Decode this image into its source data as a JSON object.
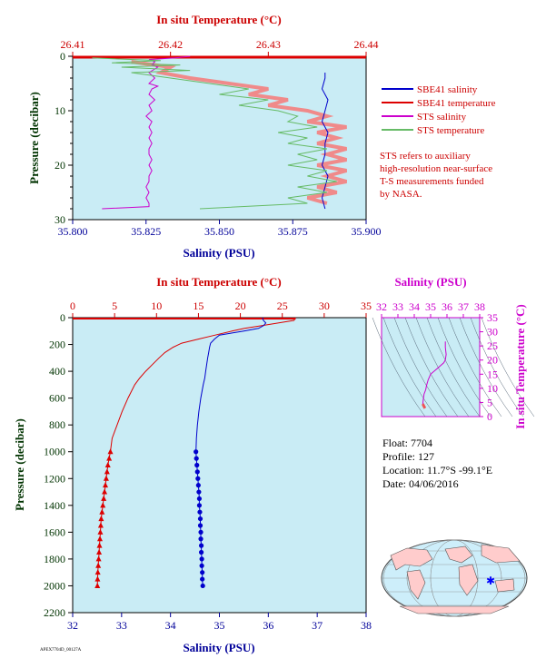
{
  "colors": {
    "plot_bg": "#c9ecf5",
    "sbe_salinity": "#0000cc",
    "sbe_temperature": "#dd0000",
    "sts_salinity": "#cc00cc",
    "sts_temperature": "#66bb66",
    "sts_temperature_band": "#f08a8a",
    "axis_red": "#cc0000",
    "axis_blue": "#000099",
    "axis_green": "#003300",
    "axis_magenta": "#cc00cc",
    "land": "#ffcccc",
    "ocean": "#cdeefa",
    "float_marker": "#0000ff"
  },
  "legend": {
    "items": [
      {
        "label": "SBE41 salinity",
        "color": "#0000cc"
      },
      {
        "label": "SBE41 temperature",
        "color": "#dd0000"
      },
      {
        "label": "STS salinity",
        "color": "#cc00cc"
      },
      {
        "label": "STS temperature",
        "color": "#66bb66"
      }
    ],
    "note": [
      "STS refers to auxiliary",
      "high-resolution near-surface",
      "T-S measurements funded",
      "by NASA."
    ]
  },
  "info": {
    "float": "Float:  7704",
    "profile": "Profile:  127",
    "location": "Location:  11.7°S  -99.1°E",
    "date": "Date:  04/06/2016"
  },
  "footer_tag": "APEX7704D_00127A",
  "chart_data": [
    {
      "id": "near-surface",
      "type": "line",
      "top_axis_label": "In situ Temperature (°C)",
      "bottom_axis_label": "Salinity (PSU)",
      "ylabel": "Pressure (decibar)",
      "temp_ticks": [
        "26.41",
        "26.42",
        "26.43",
        "26.44"
      ],
      "temp_lim": [
        26.41,
        26.44
      ],
      "sal_ticks": [
        "35.800",
        "35.825",
        "35.850",
        "35.875",
        "35.900"
      ],
      "sal_lim": [
        35.8,
        35.9
      ],
      "p_ticks": [
        "0",
        "10",
        "20",
        "30"
      ],
      "p_lim": [
        0,
        30
      ],
      "series": [
        {
          "name": "STS salinity",
          "p": [
            0.0,
            0.3,
            0.6,
            1.0,
            1.5,
            2.0,
            3.0,
            4.0,
            5.0,
            5.5,
            6.0,
            7.0,
            8.0,
            9.0,
            10.0,
            11.0,
            12.0,
            13.0,
            14.0,
            15.0,
            16.0,
            17.0,
            18.0,
            19.0,
            20.0,
            21.0,
            22.0,
            23.0,
            24.0,
            25.0,
            26.0,
            27.0,
            27.6,
            28.0
          ],
          "x": [
            35.84,
            35.835,
            35.826,
            35.828,
            35.827,
            35.829,
            35.826,
            35.828,
            35.826,
            35.829,
            35.827,
            35.826,
            35.828,
            35.826,
            35.827,
            35.825,
            35.827,
            35.826,
            35.827,
            35.826,
            35.827,
            35.826,
            35.826,
            35.827,
            35.826,
            35.827,
            35.826,
            35.826,
            35.825,
            35.826,
            35.825,
            35.826,
            35.826,
            35.81
          ]
        },
        {
          "name": "SBE41 salinity",
          "p": [
            3.0,
            4.0,
            6.0,
            8.0,
            10.0,
            12.0,
            14.0,
            16.0,
            18.0,
            20.0,
            22.0,
            24.0,
            26.0,
            28.0
          ],
          "x": [
            35.886,
            35.886,
            35.885,
            35.887,
            35.886,
            35.885,
            35.887,
            35.886,
            35.886,
            35.885,
            35.887,
            35.886,
            35.885,
            35.886
          ]
        },
        {
          "name": "STS temperature",
          "p": [
            0.3,
            0.8,
            1.2,
            1.6,
            2.0,
            2.6,
            3.0,
            3.5,
            4.0,
            5.0,
            6.0,
            7.0,
            8.0,
            9.0,
            10.0,
            11.0,
            12.0,
            13.0,
            14.0,
            15.0,
            16.0,
            17.0,
            18.0,
            19.0,
            20.0,
            21.0,
            22.0,
            23.0,
            24.0,
            25.0,
            26.0,
            27.0,
            28.0
          ],
          "x": [
            26.412,
            26.419,
            26.414,
            26.421,
            26.415,
            26.422,
            26.416,
            26.418,
            26.42,
            26.424,
            26.428,
            26.425,
            26.43,
            26.427,
            26.431,
            26.433,
            26.432,
            26.435,
            26.431,
            26.434,
            26.432,
            26.436,
            26.433,
            26.435,
            26.432,
            26.436,
            26.434,
            26.437,
            26.433,
            26.436,
            26.432,
            26.434,
            26.423
          ]
        },
        {
          "name": "STS temperature band",
          "p": [
            1.0,
            2.0,
            3.0,
            4.0,
            5.0,
            6.0,
            7.0,
            8.0,
            9.0,
            10.0,
            11.0,
            12.0,
            13.0,
            14.0,
            15.0,
            16.0,
            17.0,
            18.0,
            19.0,
            20.0,
            21.0,
            22.0,
            23.0,
            24.0,
            25.0,
            26.0,
            27.0
          ],
          "x": [
            26.416,
            26.42,
            26.419,
            26.422,
            26.426,
            26.43,
            26.428,
            26.432,
            26.43,
            26.434,
            26.436,
            26.434,
            26.438,
            26.435,
            26.437,
            26.435,
            26.438,
            26.436,
            26.438,
            26.435,
            26.438,
            26.436,
            26.438,
            26.435,
            26.437,
            26.434,
            26.436
          ]
        }
      ]
    },
    {
      "id": "full-profile",
      "type": "line",
      "top_axis_label": "In situ Temperature (°C)",
      "bottom_axis_label": "Salinity (PSU)",
      "ylabel": "Pressure (decibar)",
      "temp_ticks": [
        "0",
        "5",
        "10",
        "15",
        "20",
        "25",
        "30",
        "35"
      ],
      "temp_lim": [
        0,
        35
      ],
      "sal_ticks": [
        "32",
        "33",
        "34",
        "35",
        "36",
        "37",
        "38"
      ],
      "sal_lim": [
        32,
        38
      ],
      "p_ticks": [
        "0",
        "200",
        "400",
        "600",
        "800",
        "1000",
        "1200",
        "1400",
        "1600",
        "1800",
        "2000",
        "2200"
      ],
      "p_lim": [
        0,
        2200
      ],
      "series": [
        {
          "name": "SBE41 temperature",
          "p": [
            0,
            20,
            40,
            60,
            80,
            100,
            130,
            160,
            190,
            220,
            260,
            300,
            350,
            400,
            450,
            500,
            600,
            700,
            800,
            900,
            1000
          ],
          "x": [
            26.6,
            26.4,
            24.5,
            22.5,
            20.5,
            19.0,
            17.0,
            15.0,
            13.0,
            12.0,
            11.0,
            10.3,
            9.5,
            8.7,
            8.0,
            7.4,
            6.6,
            5.9,
            5.3,
            4.7,
            4.5
          ]
        },
        {
          "name": "SBE41 salinity",
          "p": [
            0,
            20,
            40,
            60,
            80,
            100,
            130,
            160,
            190,
            220,
            260,
            300,
            350,
            400,
            450,
            500,
            600,
            700,
            800,
            900,
            1000
          ],
          "x": [
            35.88,
            35.9,
            35.95,
            35.9,
            35.8,
            35.5,
            35.0,
            34.9,
            34.82,
            34.8,
            34.78,
            34.76,
            34.74,
            34.72,
            34.7,
            34.67,
            34.62,
            34.58,
            34.55,
            34.53,
            34.52
          ]
        },
        {
          "name": "temperature-markers",
          "p": [
            1000,
            1050,
            1100,
            1150,
            1200,
            1250,
            1300,
            1350,
            1400,
            1450,
            1500,
            1550,
            1600,
            1650,
            1700,
            1750,
            1800,
            1850,
            1900,
            1950,
            2000
          ],
          "x": [
            4.5,
            4.35,
            4.2,
            4.1,
            4.0,
            3.9,
            3.8,
            3.7,
            3.6,
            3.5,
            3.4,
            3.35,
            3.3,
            3.25,
            3.2,
            3.15,
            3.1,
            3.05,
            3.0,
            2.97,
            2.95
          ]
        },
        {
          "name": "salinity-markers",
          "p": [
            1000,
            1050,
            1100,
            1150,
            1200,
            1250,
            1300,
            1350,
            1400,
            1450,
            1500,
            1550,
            1600,
            1650,
            1700,
            1750,
            1800,
            1850,
            1900,
            1950,
            2000
          ],
          "x": [
            34.52,
            34.53,
            34.54,
            34.55,
            34.56,
            34.57,
            34.58,
            34.59,
            34.59,
            34.6,
            34.61,
            34.61,
            34.62,
            34.62,
            34.63,
            34.63,
            34.64,
            34.64,
            34.65,
            34.65,
            34.66
          ]
        }
      ]
    },
    {
      "id": "ts-diagram",
      "type": "line",
      "top_axis_label": "Salinity (PSU)",
      "right_axis_label": "In situ Temperature (°C)",
      "sal_ticks": [
        "32",
        "33",
        "34",
        "35",
        "36",
        "37",
        "38"
      ],
      "sal_lim": [
        32,
        38
      ],
      "temp_ticks": [
        "0",
        "5",
        "10",
        "15",
        "20",
        "25",
        "30",
        "35"
      ],
      "temp_lim": [
        0,
        35
      ],
      "series": [
        {
          "name": "T-S curve",
          "s": [
            35.9,
            35.9,
            35.95,
            35.9,
            35.8,
            35.4,
            35.0,
            34.85,
            34.75,
            34.7,
            34.6,
            34.55,
            34.52
          ],
          "t": [
            26.6,
            24.5,
            22.0,
            20.0,
            19.0,
            17.0,
            15.0,
            13.0,
            11.0,
            9.5,
            8.0,
            6.0,
            4.5
          ]
        },
        {
          "name": "T-S deep",
          "s": [
            34.52,
            34.58,
            34.62,
            34.66
          ],
          "t": [
            4.5,
            3.8,
            3.3,
            2.95
          ]
        }
      ]
    }
  ]
}
